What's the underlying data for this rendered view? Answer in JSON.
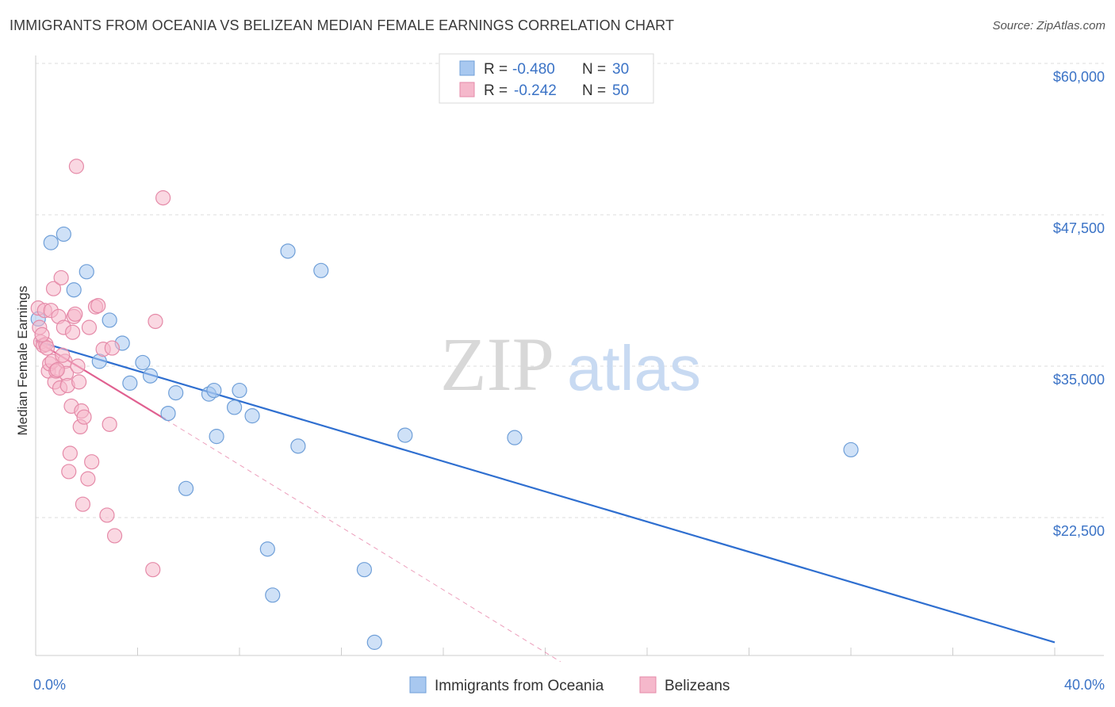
{
  "title": "IMMIGRANTS FROM OCEANIA VS BELIZEAN MEDIAN FEMALE EARNINGS CORRELATION CHART",
  "source": "Source: ZipAtlas.com",
  "watermark": {
    "zip": "ZIP",
    "atlas": "atlas"
  },
  "legend": {
    "rows": [
      {
        "r_label": "R = ",
        "r_value": "-0.480",
        "n_label": "N = ",
        "n_value": "30",
        "color": "#a8c8f0"
      },
      {
        "r_label": "R = ",
        "r_value": "-0.242",
        "n_label": "N = ",
        "n_value": "50",
        "color": "#f5b8cb"
      }
    ]
  },
  "chart_data": {
    "type": "scatter",
    "title": "IMMIGRANTS FROM OCEANIA VS BELIZEAN MEDIAN FEMALE EARNINGS CORRELATION CHART",
    "xlabel": "",
    "ylabel": "Median Female Earnings",
    "xlim": [
      0,
      40
    ],
    "ylim": [
      10000,
      62000
    ],
    "x_tick_labels": [
      "0.0%",
      "40.0%"
    ],
    "y_ticks": [
      22500,
      35000,
      47500,
      60000
    ],
    "y_tick_labels": [
      "$22,500",
      "$35,000",
      "$47,500",
      "$60,000"
    ],
    "grid": true,
    "series": [
      {
        "name": "Immigrants from Oceania",
        "color": "#a8c8f0",
        "stroke": "#6f9fd8",
        "line_color": "#2f6fd0",
        "trend": {
          "x": [
            0,
            40
          ],
          "y": [
            37100,
            12200
          ],
          "dashed_extension": false
        },
        "points": [
          [
            0.1,
            38900
          ],
          [
            0.6,
            45200
          ],
          [
            1.1,
            45900
          ],
          [
            1.5,
            41300
          ],
          [
            2.0,
            42800
          ],
          [
            2.5,
            35400
          ],
          [
            2.9,
            38800
          ],
          [
            3.4,
            36900
          ],
          [
            3.7,
            33600
          ],
          [
            4.2,
            35300
          ],
          [
            4.5,
            34200
          ],
          [
            5.2,
            31100
          ],
          [
            5.5,
            32800
          ],
          [
            5.9,
            24900
          ],
          [
            6.8,
            32700
          ],
          [
            7.0,
            33000
          ],
          [
            7.1,
            29200
          ],
          [
            7.8,
            31600
          ],
          [
            8.0,
            33000
          ],
          [
            8.5,
            30900
          ],
          [
            9.1,
            19900
          ],
          [
            9.3,
            16100
          ],
          [
            9.9,
            44500
          ],
          [
            10.3,
            28400
          ],
          [
            11.2,
            42900
          ],
          [
            12.9,
            18200
          ],
          [
            13.3,
            12200
          ],
          [
            14.5,
            29300
          ],
          [
            18.8,
            29100
          ],
          [
            32.0,
            28100
          ]
        ]
      },
      {
        "name": "Belizeans",
        "color": "#f5b8cb",
        "stroke": "#e58aa8",
        "line_color": "#e06090",
        "trend": {
          "x": [
            0,
            5.1
          ],
          "y": [
            37100,
            30600
          ],
          "dashed_extension": true,
          "extension_to": [
            20.6,
            10600
          ]
        },
        "points": [
          [
            0.1,
            39800
          ],
          [
            0.15,
            38200
          ],
          [
            0.2,
            37000
          ],
          [
            0.3,
            36700
          ],
          [
            0.35,
            39600
          ],
          [
            0.4,
            36800
          ],
          [
            0.5,
            34600
          ],
          [
            0.55,
            35200
          ],
          [
            0.6,
            39600
          ],
          [
            0.65,
            35400
          ],
          [
            0.7,
            41400
          ],
          [
            0.75,
            33700
          ],
          [
            0.8,
            34600
          ],
          [
            0.9,
            39100
          ],
          [
            0.95,
            33200
          ],
          [
            1.0,
            42300
          ],
          [
            1.1,
            38200
          ],
          [
            1.15,
            35400
          ],
          [
            1.2,
            34400
          ],
          [
            1.25,
            33400
          ],
          [
            1.3,
            26300
          ],
          [
            1.35,
            27800
          ],
          [
            1.4,
            31700
          ],
          [
            1.45,
            37800
          ],
          [
            1.5,
            39100
          ],
          [
            1.55,
            39300
          ],
          [
            1.6,
            51500
          ],
          [
            1.65,
            35000
          ],
          [
            1.7,
            33700
          ],
          [
            1.75,
            30000
          ],
          [
            1.8,
            31300
          ],
          [
            1.85,
            23600
          ],
          [
            1.9,
            30800
          ],
          [
            2.05,
            25700
          ],
          [
            2.1,
            38200
          ],
          [
            2.2,
            27100
          ],
          [
            2.35,
            39900
          ],
          [
            2.45,
            40000
          ],
          [
            2.8,
            22700
          ],
          [
            2.9,
            30200
          ],
          [
            3.1,
            21000
          ],
          [
            4.6,
            18200
          ],
          [
            4.7,
            38700
          ],
          [
            5.0,
            48900
          ],
          [
            0.45,
            36500
          ],
          [
            0.85,
            34700
          ],
          [
            1.05,
            35900
          ],
          [
            2.65,
            36400
          ],
          [
            0.25,
            37600
          ],
          [
            3.0,
            36500
          ]
        ]
      }
    ]
  },
  "bottom_legend": [
    {
      "label": "Immigrants from Oceania",
      "color": "#a8c8f0"
    },
    {
      "label": "Belizeans",
      "color": "#f5b8cb"
    }
  ]
}
